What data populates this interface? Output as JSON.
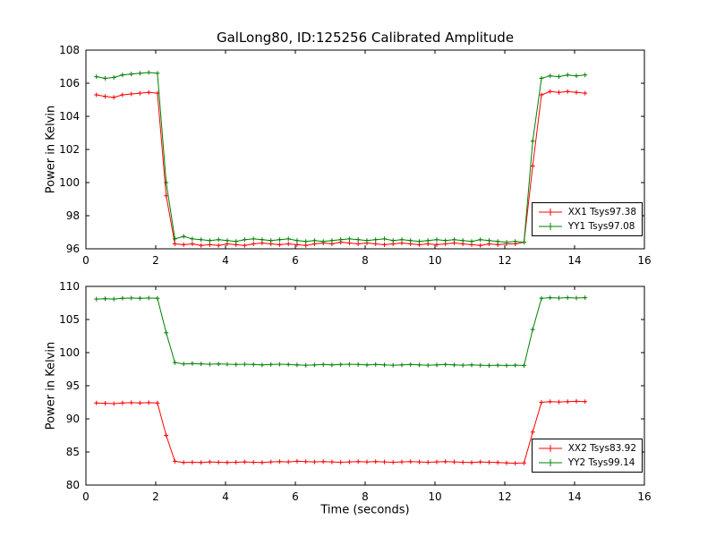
{
  "figure": {
    "background": "#ffffff",
    "frame_color": "#000000"
  },
  "chart_data": [
    {
      "type": "line",
      "title": "GalLong80, ID:125256 Calibrated Amplitude",
      "xlabel": "",
      "ylabel": "Power in Kelvin",
      "xlim": [
        0,
        16
      ],
      "ylim": [
        96,
        108
      ],
      "xticks": [
        0,
        2,
        4,
        6,
        8,
        10,
        12,
        14,
        16
      ],
      "yticks": [
        96,
        98,
        100,
        102,
        104,
        106,
        108
      ],
      "grid": false,
      "legend_position": "lower right",
      "marker": "plus",
      "x": [
        0.3,
        0.55,
        0.8,
        1.05,
        1.3,
        1.55,
        1.8,
        2.05,
        2.3,
        2.55,
        2.8,
        3.05,
        3.3,
        3.55,
        3.8,
        4.05,
        4.3,
        4.55,
        4.8,
        5.05,
        5.3,
        5.55,
        5.8,
        6.05,
        6.3,
        6.55,
        6.8,
        7.05,
        7.3,
        7.55,
        7.8,
        8.05,
        8.3,
        8.55,
        8.8,
        9.05,
        9.3,
        9.55,
        9.8,
        10.05,
        10.3,
        10.55,
        10.8,
        11.05,
        11.3,
        11.55,
        11.8,
        12.05,
        12.3,
        12.55,
        12.8,
        13.05,
        13.3,
        13.55,
        13.8,
        14.05,
        14.3
      ],
      "series": [
        {
          "name": "XX1 Tsys97.38",
          "color": "#ff0000",
          "values": [
            105.3,
            105.2,
            105.15,
            105.3,
            105.35,
            105.4,
            105.45,
            105.4,
            99.2,
            96.3,
            96.25,
            96.3,
            96.2,
            96.25,
            96.2,
            96.3,
            96.25,
            96.2,
            96.3,
            96.35,
            96.3,
            96.25,
            96.3,
            96.25,
            96.2,
            96.3,
            96.35,
            96.3,
            96.4,
            96.35,
            96.3,
            96.35,
            96.3,
            96.25,
            96.3,
            96.35,
            96.3,
            96.25,
            96.3,
            96.25,
            96.3,
            96.35,
            96.3,
            96.25,
            96.2,
            96.3,
            96.25,
            96.3,
            96.3,
            96.4,
            101.0,
            105.3,
            105.5,
            105.45,
            105.5,
            105.45,
            105.4
          ]
        },
        {
          "name": "YY1 Tsys97.08",
          "color": "#008000",
          "values": [
            106.4,
            106.3,
            106.35,
            106.5,
            106.55,
            106.6,
            106.65,
            106.6,
            100.0,
            96.6,
            96.75,
            96.6,
            96.55,
            96.5,
            96.55,
            96.5,
            96.45,
            96.55,
            96.6,
            96.55,
            96.5,
            96.55,
            96.6,
            96.5,
            96.45,
            96.5,
            96.45,
            96.5,
            96.55,
            96.6,
            96.55,
            96.5,
            96.55,
            96.6,
            96.5,
            96.55,
            96.5,
            96.45,
            96.5,
            96.55,
            96.5,
            96.55,
            96.5,
            96.45,
            96.55,
            96.5,
            96.45,
            96.4,
            96.45,
            96.4,
            102.5,
            106.3,
            106.45,
            106.4,
            106.5,
            106.45,
            106.5
          ]
        }
      ]
    },
    {
      "type": "line",
      "title": "",
      "xlabel": "Time (seconds)",
      "ylabel": "Power in Kelvin",
      "xlim": [
        0,
        16
      ],
      "ylim": [
        80,
        110
      ],
      "xticks": [
        0,
        2,
        4,
        6,
        8,
        10,
        12,
        14,
        16
      ],
      "yticks": [
        80,
        85,
        90,
        95,
        100,
        105,
        110
      ],
      "grid": false,
      "legend_position": "lower right",
      "marker": "plus",
      "x": [
        0.3,
        0.55,
        0.8,
        1.05,
        1.3,
        1.55,
        1.8,
        2.05,
        2.3,
        2.55,
        2.8,
        3.05,
        3.3,
        3.55,
        3.8,
        4.05,
        4.3,
        4.55,
        4.8,
        5.05,
        5.3,
        5.55,
        5.8,
        6.05,
        6.3,
        6.55,
        6.8,
        7.05,
        7.3,
        7.55,
        7.8,
        8.05,
        8.3,
        8.55,
        8.8,
        9.05,
        9.3,
        9.55,
        9.8,
        10.05,
        10.3,
        10.55,
        10.8,
        11.05,
        11.3,
        11.55,
        11.8,
        12.05,
        12.3,
        12.55,
        12.8,
        13.05,
        13.3,
        13.55,
        13.8,
        14.05,
        14.3
      ],
      "series": [
        {
          "name": "XX2 Tsys83.92",
          "color": "#ff0000",
          "values": [
            92.4,
            92.35,
            92.3,
            92.4,
            92.45,
            92.4,
            92.45,
            92.4,
            87.5,
            83.6,
            83.4,
            83.45,
            83.4,
            83.5,
            83.45,
            83.4,
            83.45,
            83.5,
            83.45,
            83.4,
            83.5,
            83.55,
            83.5,
            83.6,
            83.55,
            83.5,
            83.55,
            83.5,
            83.45,
            83.5,
            83.55,
            83.5,
            83.55,
            83.5,
            83.45,
            83.5,
            83.55,
            83.5,
            83.45,
            83.5,
            83.55,
            83.5,
            83.45,
            83.4,
            83.5,
            83.45,
            83.4,
            83.35,
            83.3,
            83.35,
            88.0,
            92.5,
            92.6,
            92.55,
            92.6,
            92.65,
            92.6
          ]
        },
        {
          "name": "YY2 Tsys99.14",
          "color": "#008000",
          "values": [
            108.1,
            108.15,
            108.1,
            108.2,
            108.25,
            108.2,
            108.25,
            108.2,
            103.0,
            98.5,
            98.3,
            98.35,
            98.3,
            98.25,
            98.3,
            98.25,
            98.2,
            98.25,
            98.2,
            98.15,
            98.2,
            98.25,
            98.2,
            98.15,
            98.1,
            98.15,
            98.2,
            98.15,
            98.2,
            98.25,
            98.2,
            98.15,
            98.2,
            98.15,
            98.1,
            98.15,
            98.2,
            98.15,
            98.1,
            98.15,
            98.2,
            98.15,
            98.1,
            98.15,
            98.1,
            98.05,
            98.1,
            98.05,
            98.1,
            98.05,
            103.5,
            108.2,
            108.3,
            108.25,
            108.3,
            108.25,
            108.3
          ]
        }
      ]
    }
  ]
}
